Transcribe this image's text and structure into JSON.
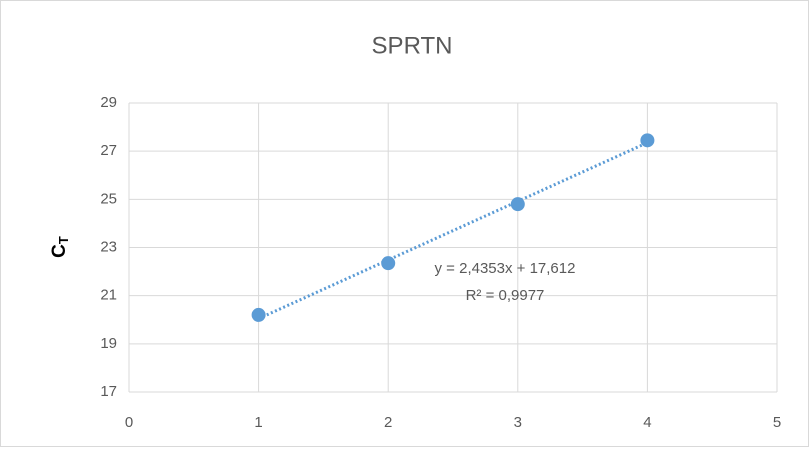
{
  "chart_data": {
    "type": "scatter",
    "title": "SPRTN",
    "ylabel": "C",
    "ylabel_sub": "T",
    "series": [
      {
        "color": "#5b9bd5",
        "x": [
          1,
          2,
          3,
          4
        ],
        "values": [
          20.2,
          22.35,
          24.8,
          27.45
        ]
      }
    ],
    "xlim": [
      0,
      5
    ],
    "xticks": [
      0,
      1,
      2,
      3,
      4,
      5
    ],
    "ylim": [
      17,
      29
    ],
    "yticks": [
      17,
      19,
      21,
      23,
      25,
      27,
      29
    ],
    "grid": true,
    "trendline": {
      "slope": 2.4353,
      "intercept": 17.612,
      "label": "y = 2,4353x + 17,612",
      "r2_label": "R² = 0,9977"
    }
  }
}
